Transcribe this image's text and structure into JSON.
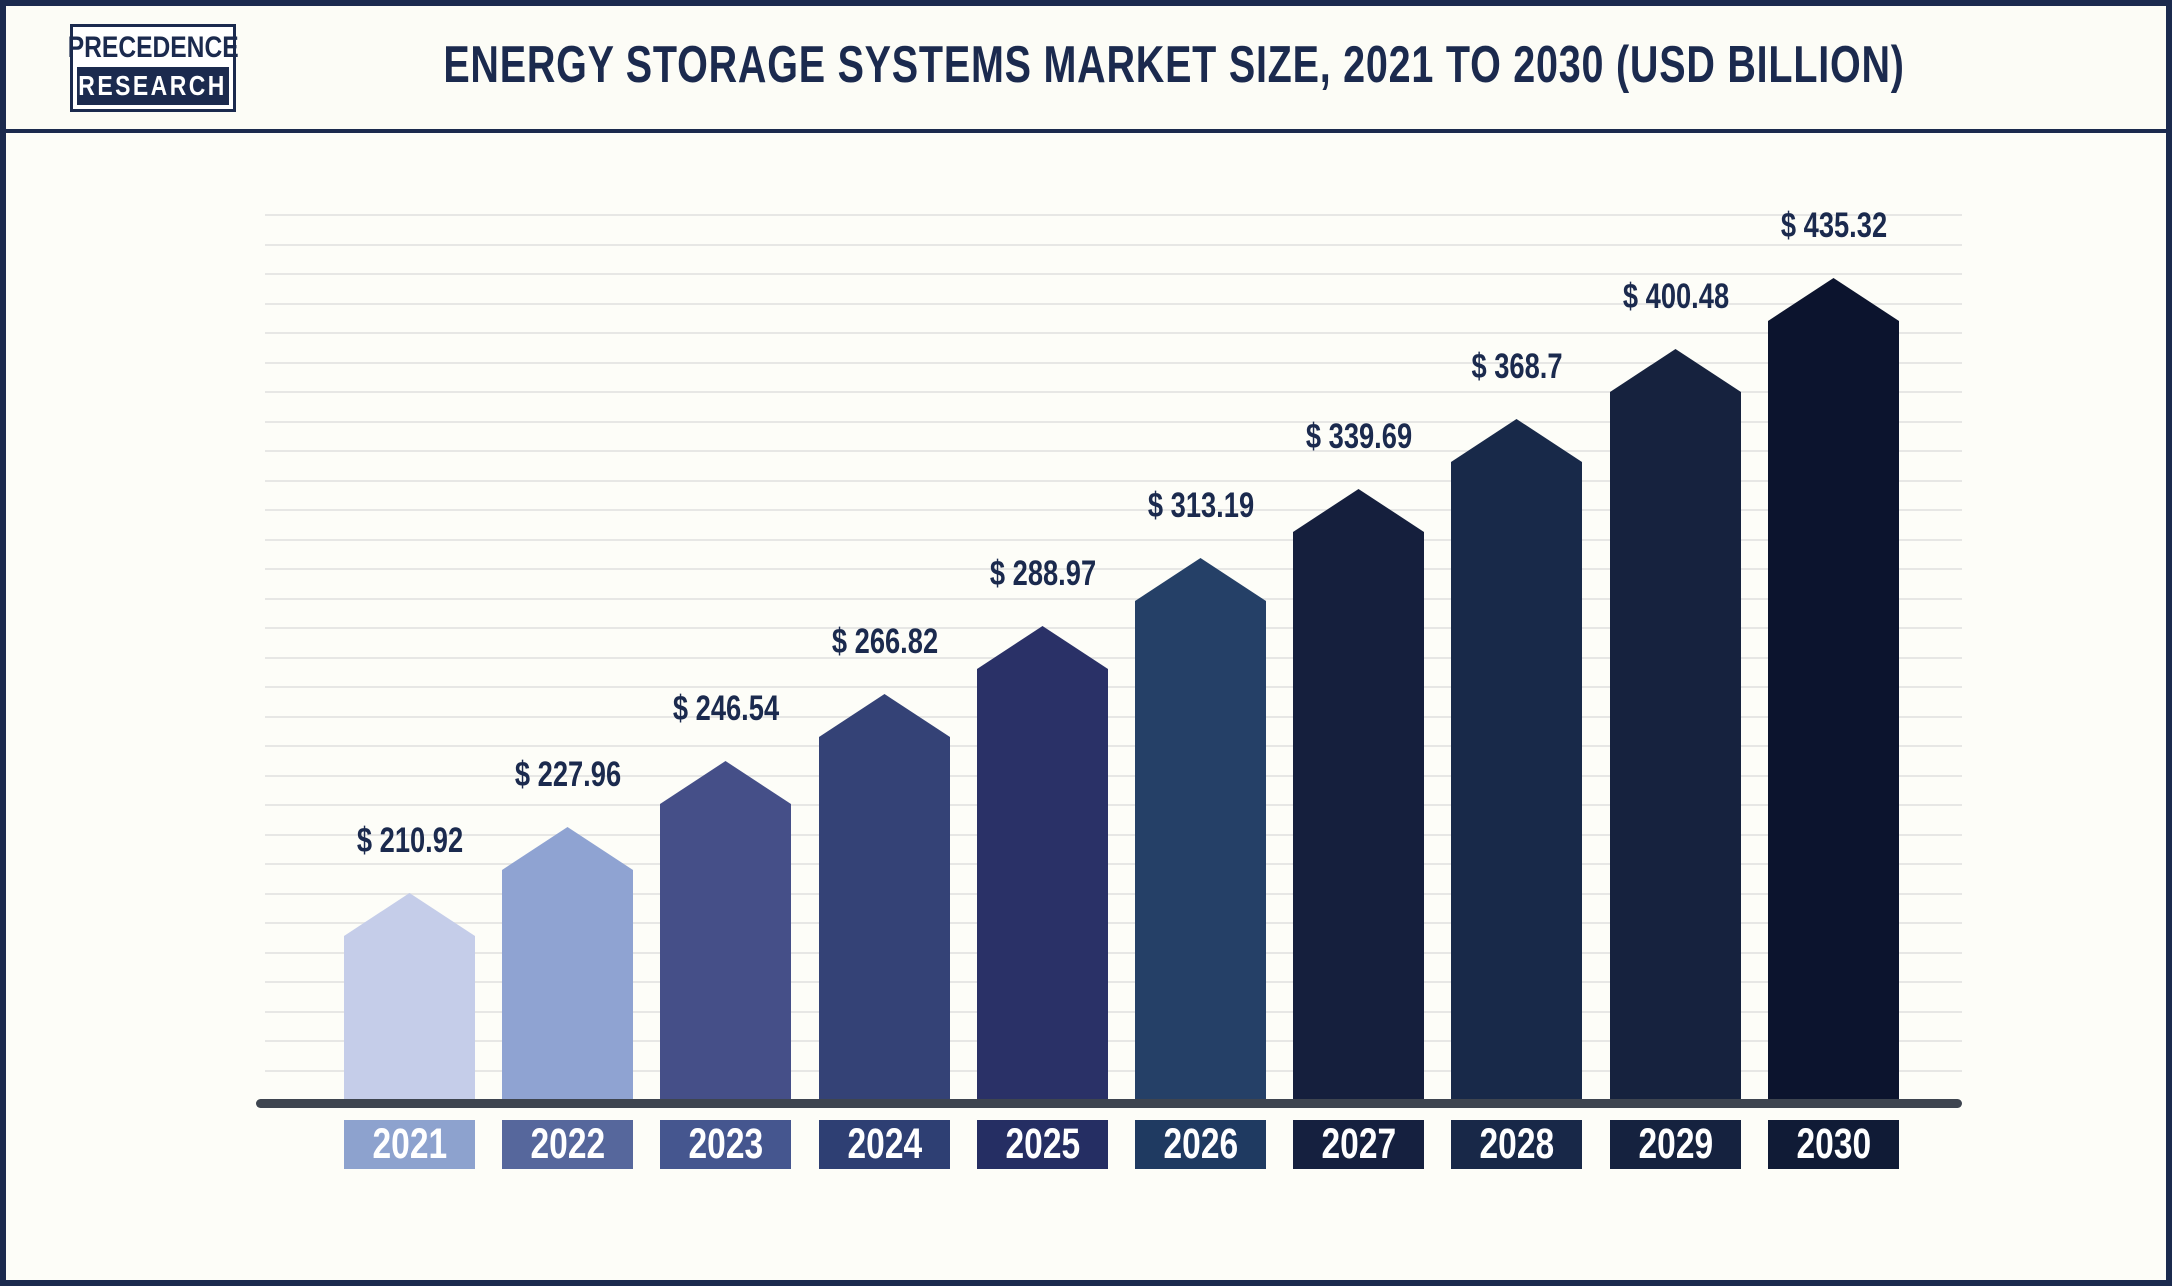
{
  "header": {
    "logo_line1": "PRECEDENCE",
    "logo_line2": "RESEARCH",
    "title": "ENERGY STORAGE SYSTEMS MARKET SIZE, 2021 TO 2030 (USD BILLION)"
  },
  "chart_data": {
    "type": "bar",
    "title": "Energy Storage Systems Market Size, 2021 to 2030 (USD Billion)",
    "unit": "USD Billion",
    "categories": [
      "2021",
      "2022",
      "2023",
      "2024",
      "2025",
      "2026",
      "2027",
      "2028",
      "2029",
      "2030"
    ],
    "values": [
      210.92,
      227.96,
      246.54,
      266.82,
      288.97,
      313.19,
      339.69,
      368.7,
      400.48,
      435.32
    ],
    "value_labels": [
      "$ 210.92",
      "$ 227.96",
      "$ 246.54",
      "$ 266.82",
      "$ 288.97",
      "$ 313.19",
      "$ 339.69",
      "$ 368.7",
      "$ 400.48",
      "$ 435.32"
    ],
    "bar_colors": [
      "#c5cde9",
      "#8fa3d2",
      "#454f88",
      "#344276",
      "#2a3167",
      "#254067",
      "#151f3d",
      "#182949",
      "#16223e",
      "#0c142e"
    ],
    "year_box_colors": [
      "#8da2ce",
      "#56679c",
      "#45568f",
      "#2e3f73",
      "#252e63",
      "#1f3a61",
      "#15203f",
      "#182848",
      "#15223f",
      "#101b36"
    ],
    "xlabel": "",
    "ylabel": "",
    "grid": true,
    "legend_position": "none",
    "bar_shape": "pointed-top"
  },
  "colors": {
    "frame": "#1b2a4e",
    "title_text": "#1b2a4e",
    "value_label_text": "#1b2a4e",
    "baseline": "#3e4550",
    "gridline": "#e7e7e5",
    "header_bg": "#fcfcf6",
    "chart_bg": "#fefefb"
  }
}
